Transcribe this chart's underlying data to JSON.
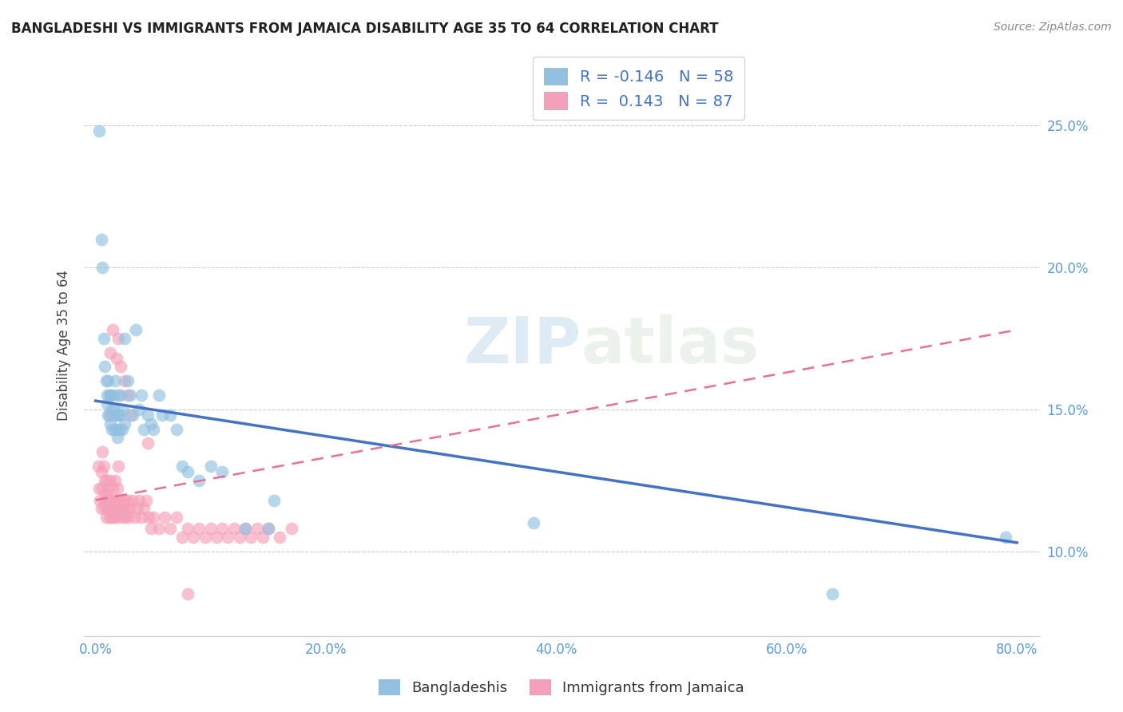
{
  "title": "BANGLADESHI VS IMMIGRANTS FROM JAMAICA DISABILITY AGE 35 TO 64 CORRELATION CHART",
  "source": "Source: ZipAtlas.com",
  "ylabel": "Disability Age 35 to 64",
  "xlabel_ticks": [
    "0.0%",
    "20.0%",
    "40.0%",
    "60.0%",
    "80.0%"
  ],
  "xlabel_vals": [
    0.0,
    0.2,
    0.4,
    0.6,
    0.8
  ],
  "ylabel_ticks": [
    "10.0%",
    "15.0%",
    "20.0%",
    "25.0%"
  ],
  "ylabel_vals": [
    0.1,
    0.15,
    0.2,
    0.25
  ],
  "xlim": [
    -0.01,
    0.82
  ],
  "ylim": [
    0.07,
    0.275
  ],
  "legend1_r": "-0.146",
  "legend1_n": "58",
  "legend2_r": "0.143",
  "legend2_n": "87",
  "blue_color": "#92C0E0",
  "pink_color": "#F4A0B8",
  "blue_line_color": "#4472C4",
  "pink_line_color": "#E87090",
  "watermark_zip": "ZIP",
  "watermark_atlas": "atlas",
  "background_color": "#ffffff",
  "blue_x": [
    0.003,
    0.005,
    0.006,
    0.007,
    0.008,
    0.009,
    0.01,
    0.01,
    0.011,
    0.011,
    0.012,
    0.012,
    0.013,
    0.013,
    0.014,
    0.014,
    0.015,
    0.015,
    0.016,
    0.016,
    0.017,
    0.018,
    0.018,
    0.019,
    0.02,
    0.02,
    0.021,
    0.022,
    0.022,
    0.023,
    0.024,
    0.025,
    0.025,
    0.028,
    0.03,
    0.032,
    0.035,
    0.038,
    0.04,
    0.042,
    0.045,
    0.048,
    0.05,
    0.055,
    0.058,
    0.065,
    0.07,
    0.075,
    0.08,
    0.09,
    0.1,
    0.11,
    0.13,
    0.15,
    0.155,
    0.38,
    0.64,
    0.79
  ],
  "blue_y": [
    0.248,
    0.21,
    0.2,
    0.175,
    0.165,
    0.16,
    0.155,
    0.152,
    0.148,
    0.16,
    0.155,
    0.148,
    0.145,
    0.155,
    0.15,
    0.143,
    0.148,
    0.155,
    0.15,
    0.143,
    0.16,
    0.148,
    0.143,
    0.14,
    0.155,
    0.148,
    0.143,
    0.155,
    0.148,
    0.143,
    0.15,
    0.145,
    0.175,
    0.16,
    0.155,
    0.148,
    0.178,
    0.15,
    0.155,
    0.143,
    0.148,
    0.145,
    0.143,
    0.155,
    0.148,
    0.148,
    0.143,
    0.13,
    0.128,
    0.125,
    0.13,
    0.128,
    0.108,
    0.108,
    0.118,
    0.11,
    0.085,
    0.105
  ],
  "pink_x": [
    0.002,
    0.003,
    0.004,
    0.005,
    0.005,
    0.006,
    0.006,
    0.007,
    0.007,
    0.008,
    0.008,
    0.009,
    0.009,
    0.01,
    0.01,
    0.011,
    0.011,
    0.012,
    0.012,
    0.013,
    0.013,
    0.014,
    0.014,
    0.015,
    0.015,
    0.016,
    0.016,
    0.017,
    0.017,
    0.018,
    0.018,
    0.019,
    0.019,
    0.02,
    0.02,
    0.021,
    0.022,
    0.023,
    0.024,
    0.025,
    0.026,
    0.027,
    0.028,
    0.029,
    0.03,
    0.032,
    0.034,
    0.036,
    0.038,
    0.04,
    0.042,
    0.044,
    0.046,
    0.048,
    0.05,
    0.055,
    0.06,
    0.065,
    0.07,
    0.075,
    0.08,
    0.085,
    0.09,
    0.095,
    0.1,
    0.105,
    0.11,
    0.115,
    0.12,
    0.125,
    0.13,
    0.135,
    0.14,
    0.145,
    0.15,
    0.16,
    0.17,
    0.013,
    0.015,
    0.018,
    0.02,
    0.022,
    0.025,
    0.028,
    0.03,
    0.045,
    0.08
  ],
  "pink_y": [
    0.13,
    0.122,
    0.118,
    0.115,
    0.128,
    0.122,
    0.135,
    0.13,
    0.118,
    0.125,
    0.115,
    0.12,
    0.112,
    0.118,
    0.125,
    0.122,
    0.115,
    0.118,
    0.112,
    0.115,
    0.125,
    0.118,
    0.112,
    0.115,
    0.122,
    0.118,
    0.112,
    0.115,
    0.125,
    0.118,
    0.112,
    0.115,
    0.122,
    0.118,
    0.13,
    0.115,
    0.118,
    0.112,
    0.115,
    0.118,
    0.112,
    0.115,
    0.118,
    0.112,
    0.115,
    0.118,
    0.112,
    0.115,
    0.118,
    0.112,
    0.115,
    0.118,
    0.112,
    0.108,
    0.112,
    0.108,
    0.112,
    0.108,
    0.112,
    0.105,
    0.108,
    0.105,
    0.108,
    0.105,
    0.108,
    0.105,
    0.108,
    0.105,
    0.108,
    0.105,
    0.108,
    0.105,
    0.108,
    0.105,
    0.108,
    0.105,
    0.108,
    0.17,
    0.178,
    0.168,
    0.175,
    0.165,
    0.16,
    0.155,
    0.148,
    0.138,
    0.085
  ],
  "blue_trend_x0": 0.0,
  "blue_trend_x1": 0.8,
  "blue_trend_y0": 0.153,
  "blue_trend_y1": 0.103,
  "pink_trend_x0": 0.0,
  "pink_trend_x1": 0.8,
  "pink_trend_y0": 0.118,
  "pink_trend_y1": 0.178
}
